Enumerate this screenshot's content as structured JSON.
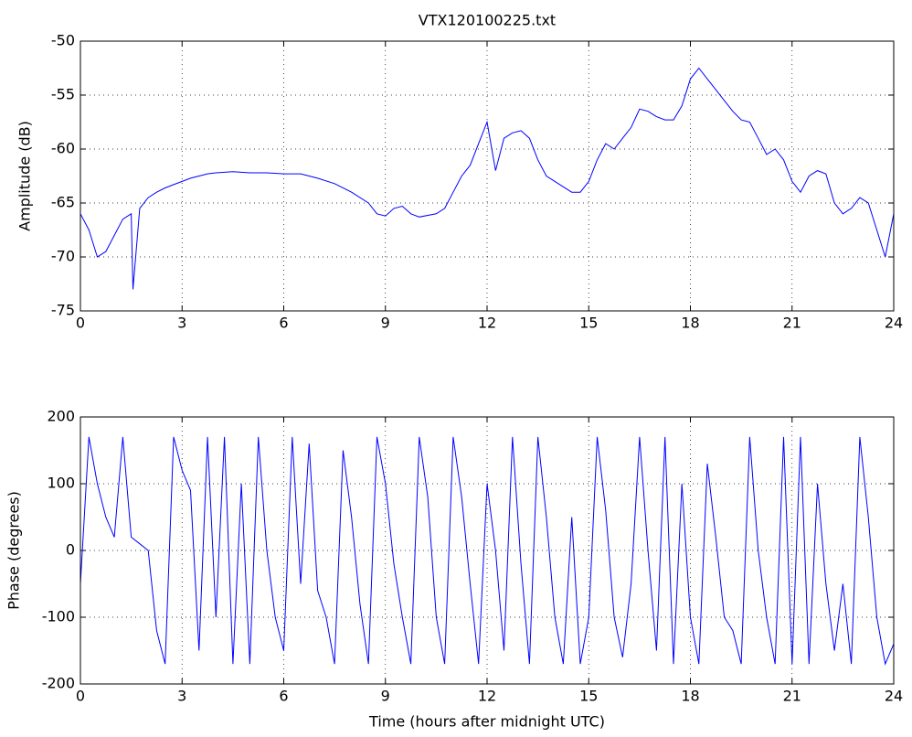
{
  "chart_data": [
    {
      "type": "line",
      "title": "VTX120100225.txt",
      "y_label": "Amplitude (dB)",
      "color": "#0000ff",
      "grid": true,
      "xlim": [
        0,
        24
      ],
      "xticks": [
        0,
        3,
        6,
        9,
        12,
        15,
        18,
        21,
        24
      ],
      "ylim": [
        -75,
        -50
      ],
      "yticks": [
        -75,
        -70,
        -65,
        -60,
        -55,
        -50
      ],
      "x": [
        0,
        0.25,
        0.5,
        0.75,
        1,
        1.25,
        1.5,
        1.55,
        1.75,
        2,
        2.25,
        2.5,
        2.75,
        3,
        3.25,
        3.5,
        3.75,
        4,
        4.5,
        5,
        5.5,
        6,
        6.5,
        7,
        7.5,
        8,
        8.5,
        8.75,
        9,
        9.25,
        9.5,
        9.75,
        10,
        10.5,
        10.75,
        11,
        11.25,
        11.5,
        11.75,
        12,
        12.25,
        12.5,
        12.75,
        13,
        13.25,
        13.5,
        13.75,
        14,
        14.25,
        14.5,
        14.75,
        15,
        15.25,
        15.5,
        15.75,
        16,
        16.25,
        16.5,
        16.75,
        17,
        17.25,
        17.5,
        17.75,
        18,
        18.25,
        18.5,
        18.75,
        19,
        19.25,
        19.5,
        19.75,
        20,
        20.25,
        20.5,
        20.75,
        21,
        21.25,
        21.5,
        21.75,
        22,
        22.25,
        22.5,
        22.75,
        23,
        23.25,
        23.5,
        23.75,
        24
      ],
      "values": [
        -66,
        -67.5,
        -70,
        -69.5,
        -68,
        -66.5,
        -66,
        -73,
        -65.5,
        -64.5,
        -64,
        -63.6,
        -63.3,
        -63,
        -62.7,
        -62.5,
        -62.3,
        -62.2,
        -62.1,
        -62.2,
        -62.2,
        -62.3,
        -62.3,
        -62.7,
        -63.2,
        -64,
        -65,
        -66,
        -66.2,
        -65.5,
        -65.3,
        -66,
        -66.3,
        -66,
        -65.5,
        -64,
        -62.5,
        -61.5,
        -59.5,
        -57.5,
        -62,
        -59,
        -58.5,
        -58.3,
        -59,
        -61,
        -62.5,
        -63,
        -63.5,
        -64,
        -64,
        -63,
        -61,
        -59.5,
        -60,
        -59,
        -58,
        -56.3,
        -56.5,
        -57,
        -57.3,
        -57.3,
        -56,
        -53.5,
        -52.5,
        -53.5,
        -54.5,
        -55.5,
        -56.5,
        -57.3,
        -57.5,
        -59,
        -60.5,
        -60,
        -61,
        -63,
        -64,
        -62.5,
        -62,
        -62.3,
        -65,
        -66,
        -65.5,
        -64.5,
        -65,
        -67.5,
        -70,
        -66
      ]
    },
    {
      "type": "line",
      "x_label": "Time (hours after midnight UTC)",
      "y_label": "Phase (degrees)",
      "color": "#0000ff",
      "grid": true,
      "xlim": [
        0,
        24
      ],
      "xticks": [
        0,
        3,
        6,
        9,
        12,
        15,
        18,
        21,
        24
      ],
      "ylim": [
        -200,
        200
      ],
      "yticks": [
        -200,
        -100,
        0,
        100,
        200
      ],
      "x": [
        0,
        0.25,
        0.5,
        0.75,
        1,
        1.25,
        1.5,
        1.75,
        2,
        2.25,
        2.5,
        2.75,
        3,
        3.25,
        3.5,
        3.75,
        4,
        4.25,
        4.5,
        4.75,
        5,
        5.25,
        5.5,
        5.75,
        6,
        6.25,
        6.5,
        6.75,
        7,
        7.25,
        7.5,
        7.75,
        8,
        8.25,
        8.5,
        8.75,
        9,
        9.25,
        9.5,
        9.75,
        10,
        10.25,
        10.5,
        10.75,
        11,
        11.25,
        11.5,
        11.75,
        12,
        12.25,
        12.5,
        12.75,
        13,
        13.25,
        13.5,
        13.75,
        14,
        14.25,
        14.5,
        14.75,
        15,
        15.25,
        15.5,
        15.75,
        16,
        16.25,
        16.5,
        16.75,
        17,
        17.25,
        17.5,
        17.75,
        18,
        18.25,
        18.5,
        18.75,
        19,
        19.25,
        19.5,
        19.75,
        20,
        20.25,
        20.5,
        20.75,
        21,
        21.25,
        21.5,
        21.75,
        22,
        22.25,
        22.5,
        22.75,
        23,
        23.25,
        23.5,
        23.75,
        24
      ],
      "values": [
        -50,
        170,
        100,
        50,
        20,
        170,
        20,
        10,
        0,
        -120,
        -170,
        170,
        120,
        90,
        -150,
        170,
        -100,
        170,
        -170,
        100,
        -170,
        170,
        0,
        -100,
        -150,
        170,
        -50,
        160,
        -60,
        -100,
        -170,
        150,
        50,
        -80,
        -170,
        170,
        100,
        -20,
        -100,
        -170,
        170,
        80,
        -100,
        -170,
        170,
        80,
        -50,
        -170,
        100,
        0,
        -150,
        170,
        -20,
        -170,
        170,
        50,
        -100,
        -170,
        50,
        -170,
        -100,
        170,
        60,
        -100,
        -160,
        -50,
        170,
        0,
        -150,
        170,
        -170,
        100,
        -100,
        -170,
        130,
        20,
        -100,
        -120,
        -170,
        170,
        0,
        -100,
        -170,
        170,
        -170,
        170,
        -170,
        100,
        -50,
        -150,
        -50,
        -170,
        170,
        50,
        -100,
        -170,
        -140
      ]
    }
  ]
}
